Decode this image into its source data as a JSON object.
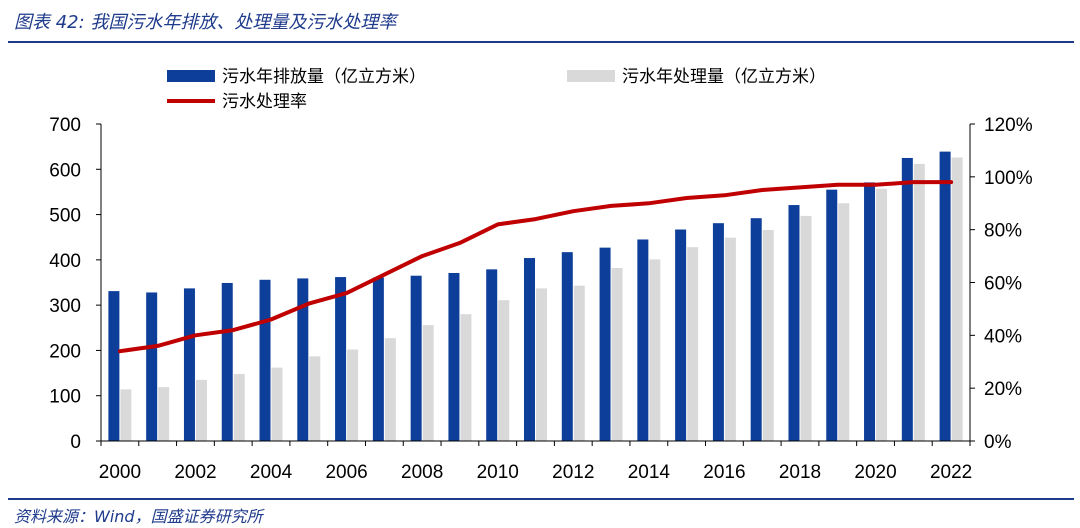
{
  "header": {
    "title": "图表 42: 我国污水年排放、处理量及污水处理率"
  },
  "footer": {
    "source": "资料来源：Wind，国盛证券研究所"
  },
  "chart_data": {
    "type": "bar",
    "categories": [
      "2000",
      "2001",
      "2002",
      "2003",
      "2004",
      "2005",
      "2006",
      "2007",
      "2008",
      "2009",
      "2010",
      "2011",
      "2012",
      "2013",
      "2014",
      "2015",
      "2016",
      "2017",
      "2018",
      "2019",
      "2020",
      "2021",
      "2022"
    ],
    "x_tick_labels": [
      "2000",
      "2002",
      "2004",
      "2006",
      "2008",
      "2010",
      "2012",
      "2014",
      "2016",
      "2018",
      "2020",
      "2022"
    ],
    "series": [
      {
        "name": "污水年排放量（亿立方米）",
        "type": "bar",
        "axis": "left",
        "color": "#0d3e99",
        "values": [
          331,
          328,
          337,
          349,
          356,
          359,
          362,
          361,
          365,
          371,
          379,
          404,
          417,
          427,
          445,
          467,
          481,
          492,
          521,
          555,
          571,
          625,
          639
        ]
      },
      {
        "name": "污水年处理量（亿立方米）",
        "type": "bar",
        "axis": "left",
        "color": "#d9d9d9",
        "values": [
          114,
          119,
          135,
          148,
          162,
          187,
          202,
          227,
          256,
          280,
          311,
          337,
          343,
          382,
          401,
          428,
          449,
          466,
          497,
          525,
          557,
          612,
          626
        ]
      },
      {
        "name": "污水处理率",
        "type": "line",
        "axis": "right",
        "color": "#c00000",
        "values": [
          34,
          36,
          40,
          42,
          46,
          52,
          56,
          63,
          70,
          75,
          82,
          84,
          87,
          89,
          90,
          92,
          93,
          95,
          96,
          97,
          97,
          98,
          98
        ]
      }
    ],
    "y_left": {
      "min": 0,
      "max": 700,
      "step": 100,
      "tick_labels": [
        "0",
        "100",
        "200",
        "300",
        "400",
        "500",
        "600",
        "700"
      ]
    },
    "y_right": {
      "min": 0,
      "max": 120,
      "step": 20,
      "tick_labels": [
        "0%",
        "20%",
        "40%",
        "60%",
        "80%",
        "100%",
        "120%"
      ]
    },
    "grid": false,
    "legend_position": "top"
  }
}
